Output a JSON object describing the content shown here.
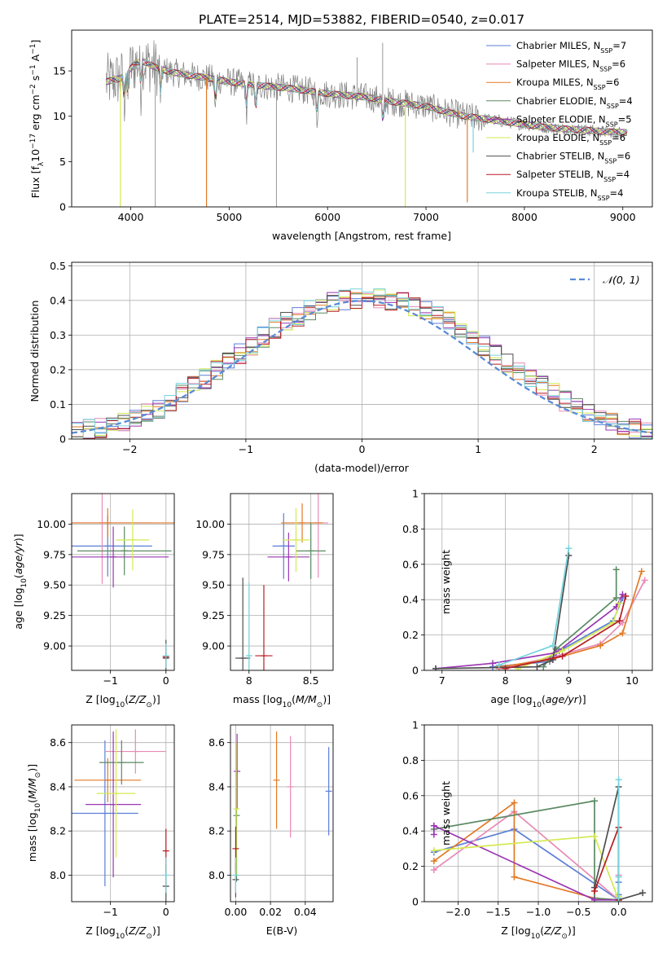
{
  "figure": {
    "title": "PLATE=2514, MJD=53882, FIBERID=0540, z=0.017"
  },
  "models": [
    {
      "name": "Chabrier MILES",
      "nssp": 7,
      "color": "#5b7fd6",
      "label_pre": "Chabrier MILES, N",
      "label_post": "=7"
    },
    {
      "name": "Salpeter MILES",
      "nssp": 6,
      "color": "#e88ab6",
      "label_pre": "Salpeter MILES, N",
      "label_post": "=6"
    },
    {
      "name": "Kroupa MILES",
      "nssp": 6,
      "color": "#e27a26",
      "label_pre": "Kroupa MILES, N",
      "label_post": "=6"
    },
    {
      "name": "Chabrier ELODIE",
      "nssp": 4,
      "color": "#5a8a62",
      "label_pre": "Chabrier ELODIE, N",
      "label_post": "=4"
    },
    {
      "name": "Salpeter ELODIE",
      "nssp": 5,
      "color": "#9a36b4",
      "label_pre": "Salpeter ELODIE, N",
      "label_post": "=5"
    },
    {
      "name": "Kroupa ELODIE",
      "nssp": 6,
      "color": "#d4ea52",
      "label_pre": "Kroupa ELODIE, N",
      "label_post": "=6"
    },
    {
      "name": "Chabrier STELIB",
      "nssp": 6,
      "color": "#4f4f4f",
      "label_pre": "Chabrier STELIB, N",
      "label_post": "=6"
    },
    {
      "name": "Salpeter STELIB",
      "nssp": 4,
      "color": "#b81c22",
      "label_pre": "Salpeter STELIB, N",
      "label_post": "=4"
    },
    {
      "name": "Kroupa STELIB",
      "nssp": 4,
      "color": "#76d4de",
      "label_pre": "Kroupa STELIB, N",
      "label_post": "=4"
    }
  ],
  "chart_data": [
    {
      "id": "spectrum",
      "type": "line",
      "xlabel": "wavelength [Angstrom, rest frame]",
      "ylabel": "Flux [f",
      "xlim": [
        3400,
        9300
      ],
      "ylim": [
        0,
        19.5
      ],
      "xticks": [
        4000,
        5000,
        6000,
        7000,
        8000,
        9000
      ],
      "yticks": [
        0,
        5,
        10,
        15
      ],
      "grid": false,
      "legend": "top-right",
      "data_color": "#808080",
      "data_x_range": [
        3750,
        9050
      ],
      "continuum": [
        [
          3750,
          13.8
        ],
        [
          3900,
          14.2
        ],
        [
          4000,
          15.3
        ],
        [
          4100,
          16.2
        ],
        [
          4250,
          15.4
        ],
        [
          4400,
          14.9
        ],
        [
          4600,
          14.5
        ],
        [
          4800,
          14.2
        ],
        [
          5000,
          13.8
        ],
        [
          5200,
          13.5
        ],
        [
          5400,
          13.3
        ],
        [
          5600,
          13.1
        ],
        [
          5800,
          12.8
        ],
        [
          6000,
          12.5
        ],
        [
          6200,
          12.3
        ],
        [
          6400,
          12.1
        ],
        [
          6600,
          11.7
        ],
        [
          6800,
          11.4
        ],
        [
          7000,
          11.1
        ],
        [
          7200,
          10.5
        ],
        [
          7400,
          10.0
        ],
        [
          7600,
          9.7
        ],
        [
          7800,
          9.4
        ],
        [
          8000,
          9.1
        ],
        [
          8200,
          8.8
        ],
        [
          8400,
          8.6
        ],
        [
          8600,
          8.5
        ],
        [
          8800,
          8.3
        ],
        [
          9050,
          8.2
        ]
      ],
      "absorption_lines": [
        3934,
        3969,
        4102,
        4304,
        4861,
        5175,
        5270,
        5892,
        6563
      ],
      "data_spikes": [
        [
          4250,
          0
        ],
        [
          5480,
          0
        ],
        [
          6560,
          18.1
        ],
        [
          6300,
          16.5
        ]
      ],
      "model_dropouts": [
        [
          3895,
          0,
          "Kroupa ELODIE"
        ],
        [
          4770,
          0,
          "Kroupa MILES"
        ],
        [
          6790,
          0,
          "Kroupa ELODIE"
        ],
        [
          7420,
          0.5,
          "Kroupa MILES"
        ],
        [
          7330,
          10.5,
          "Kroupa MILES"
        ],
        [
          7480,
          6.0,
          "Kroupa STELIB"
        ]
      ]
    },
    {
      "id": "residuals",
      "type": "histogram",
      "xlabel": "(data-model)/error",
      "ylabel": "Normed distribution",
      "xlim": [
        -2.5,
        2.5
      ],
      "ylim": [
        0,
        0.51
      ],
      "xticks": [
        -2,
        -1,
        0,
        1,
        2
      ],
      "yticks": [
        0.0,
        0.1,
        0.2,
        0.3,
        0.4,
        0.5
      ],
      "grid": true,
      "legend": "top-right",
      "legend_label": "𝒩(0, 1)",
      "bin_edges": [
        -2.5,
        -2.4,
        -2.3,
        -2.2,
        -2.1,
        -2.0,
        -1.9,
        -1.8,
        -1.7,
        -1.6,
        -1.5,
        -1.4,
        -1.3,
        -1.2,
        -1.1,
        -1.0,
        -0.9,
        -0.8,
        -0.7,
        -0.6,
        -0.5,
        -0.4,
        -0.3,
        -0.2,
        -0.1,
        0.0,
        0.1,
        0.2,
        0.3,
        0.4,
        0.5,
        0.6,
        0.7,
        0.8,
        0.9,
        1.0,
        1.1,
        1.2,
        1.3,
        1.4,
        1.5,
        1.6,
        1.7,
        1.8,
        1.9,
        2.0,
        2.1,
        2.2,
        2.3,
        2.4,
        2.5
      ],
      "base_heights": [
        0.025,
        0.028,
        0.032,
        0.036,
        0.05,
        0.06,
        0.075,
        0.09,
        0.11,
        0.135,
        0.155,
        0.175,
        0.2,
        0.22,
        0.245,
        0.27,
        0.295,
        0.32,
        0.34,
        0.355,
        0.37,
        0.385,
        0.395,
        0.4,
        0.405,
        0.41,
        0.405,
        0.4,
        0.395,
        0.385,
        0.37,
        0.355,
        0.34,
        0.32,
        0.295,
        0.27,
        0.245,
        0.22,
        0.2,
        0.175,
        0.155,
        0.135,
        0.11,
        0.09,
        0.075,
        0.06,
        0.05,
        0.036,
        0.03,
        0.025
      ]
    },
    {
      "id": "age_vs_Z",
      "type": "scatter",
      "xlabel_pre": "Z [log",
      "ylabel_pre": "age  [log",
      "xlim": [
        -1.7,
        0.15
      ],
      "ylim": [
        8.8,
        10.25
      ],
      "xticks": [
        -1,
        0
      ],
      "yticks": [
        9.0,
        9.25,
        9.5,
        9.75,
        10.0
      ],
      "ytick_labels": [
        "9.00",
        "9.25",
        "9.50",
        "9.75",
        "10.00"
      ],
      "grid": true,
      "points": [
        {
          "model": "Chabrier MILES",
          "x": -1.05,
          "y": 9.82,
          "xerr": 0.8,
          "yerr": 0.25
        },
        {
          "model": "Salpeter MILES",
          "x": -1.15,
          "y": 10.01,
          "xerr": 0.9,
          "yerr": 0.5
        },
        {
          "model": "Kroupa MILES",
          "x": -1.05,
          "y": 10.01,
          "xerr": 1.2,
          "yerr": 0.12
        },
        {
          "model": "Chabrier ELODIE",
          "x": -0.75,
          "y": 9.78,
          "xerr": 0.85,
          "yerr": 0.2
        },
        {
          "model": "Salpeter ELODIE",
          "x": -0.95,
          "y": 9.73,
          "xerr": 1.0,
          "yerr": 0.25
        },
        {
          "model": "Kroupa ELODIE",
          "x": -0.6,
          "y": 9.87,
          "xerr": 0.3,
          "yerr": 0.25
        },
        {
          "model": "Chabrier STELIB",
          "x": 0.0,
          "y": 8.9,
          "xerr": 0.03,
          "yerr": 0.15
        },
        {
          "model": "Salpeter STELIB",
          "x": 0.0,
          "y": 8.91,
          "xerr": 0.03,
          "yerr": 0.02
        },
        {
          "model": "Kroupa STELIB",
          "x": 0.0,
          "y": 8.92,
          "xerr": 0.05,
          "yerr": 0.1
        }
      ]
    },
    {
      "id": "age_vs_mass",
      "type": "scatter",
      "xlabel_pre": "mass [log",
      "ylabel_pre": "",
      "xlim": [
        7.85,
        8.68
      ],
      "ylim": [
        8.8,
        10.25
      ],
      "xticks": [
        8.0,
        8.5
      ],
      "yticks": [
        9.0,
        9.25,
        9.5,
        9.75,
        10.0
      ],
      "ytick_labels": [
        "9.00",
        "9.25",
        "9.50",
        "9.75",
        "10.00"
      ],
      "grid": true,
      "points": [
        {
          "model": "Chabrier MILES",
          "x": 8.28,
          "y": 9.82,
          "xerr": 0.09,
          "yerr": 0.27
        },
        {
          "model": "Salpeter MILES",
          "x": 8.56,
          "y": 10.01,
          "xerr": 0.08,
          "yerr": 0.45
        },
        {
          "model": "Kroupa MILES",
          "x": 8.43,
          "y": 10.01,
          "xerr": 0.17,
          "yerr": 0.16
        },
        {
          "model": "Chabrier ELODIE",
          "x": 8.5,
          "y": 9.78,
          "xerr": 0.12,
          "yerr": 0.23
        },
        {
          "model": "Salpeter ELODIE",
          "x": 8.32,
          "y": 9.73,
          "xerr": 0.17,
          "yerr": 0.2
        },
        {
          "model": "Kroupa ELODIE",
          "x": 8.38,
          "y": 9.87,
          "xerr": 0.11,
          "yerr": 0.26
        },
        {
          "model": "Chabrier STELIB",
          "x": 7.95,
          "y": 8.9,
          "xerr": 0.06,
          "yerr": 0.66
        },
        {
          "model": "Salpeter STELIB",
          "x": 8.12,
          "y": 8.92,
          "xerr": 0.07,
          "yerr": 0.58
        },
        {
          "model": "Kroupa STELIB",
          "x": 8.0,
          "y": 8.92,
          "xerr": 0.02,
          "yerr": 0.6
        }
      ]
    },
    {
      "id": "weight_vs_age",
      "type": "line",
      "xlabel_pre": "age  [log",
      "ylabel": "mass weight",
      "xlim": [
        6.72,
        10.32
      ],
      "ylim": [
        0,
        1.0
      ],
      "xticks": [
        7,
        8,
        9,
        10
      ],
      "yticks": [
        0.0,
        0.2,
        0.4,
        0.6,
        0.8,
        1.0
      ],
      "grid": true,
      "series": [
        {
          "model": "Chabrier MILES",
          "x": [
            7.8,
            8.7,
            8.85,
            9.7,
            9.85
          ],
          "y": [
            0.02,
            0.05,
            0.11,
            0.28,
            0.41
          ]
        },
        {
          "model": "Salpeter MILES",
          "x": [
            7.9,
            8.8,
            9.5,
            9.85,
            10.2
          ],
          "y": [
            0.01,
            0.08,
            0.15,
            0.27,
            0.51
          ]
        },
        {
          "model": "Kroupa MILES",
          "x": [
            7.9,
            8.7,
            9.5,
            9.85,
            10.15
          ],
          "y": [
            0.02,
            0.06,
            0.14,
            0.21,
            0.56
          ]
        },
        {
          "model": "Chabrier ELODIE",
          "x": [
            8.6,
            8.8,
            9.75,
            9.75
          ],
          "y": [
            0.02,
            0.12,
            0.41,
            0.57
          ]
        },
        {
          "model": "Salpeter ELODIE",
          "x": [
            6.9,
            7.8,
            8.8,
            9.75,
            9.85
          ],
          "y": [
            0.01,
            0.04,
            0.1,
            0.36,
            0.43
          ]
        },
        {
          "model": "Kroupa ELODIE",
          "x": [
            8.2,
            8.9,
            9.7,
            9.8
          ],
          "y": [
            0.01,
            0.11,
            0.27,
            0.38
          ]
        },
        {
          "model": "Chabrier STELIB",
          "x": [
            6.9,
            8.5,
            8.75,
            9.0
          ],
          "y": [
            0.01,
            0.02,
            0.06,
            0.65
          ]
        },
        {
          "model": "Salpeter STELIB",
          "x": [
            8.0,
            8.9,
            9.8,
            9.9
          ],
          "y": [
            0.01,
            0.08,
            0.28,
            0.42
          ]
        },
        {
          "model": "Kroupa STELIB",
          "x": [
            7.9,
            8.75,
            9.0
          ],
          "y": [
            0.03,
            0.14,
            0.69
          ]
        }
      ]
    },
    {
      "id": "mass_vs_Z",
      "type": "scatter",
      "xlabel_pre": "Z [log",
      "ylabel_pre": "mass [log",
      "xlim": [
        -1.7,
        0.15
      ],
      "ylim": [
        7.88,
        8.68
      ],
      "xticks": [
        -1,
        0
      ],
      "yticks": [
        8.0,
        8.2,
        8.4,
        8.6
      ],
      "ytick_labels": [
        "8.0",
        "8.2",
        "8.4",
        "8.6"
      ],
      "grid": true,
      "points": [
        {
          "model": "Chabrier MILES",
          "x": -1.1,
          "y": 8.28,
          "xerr": 0.6,
          "yerr": 0.33
        },
        {
          "model": "Salpeter MILES",
          "x": -0.55,
          "y": 8.56,
          "xerr": 0.55,
          "yerr": 0.1
        },
        {
          "model": "Kroupa MILES",
          "x": -1.05,
          "y": 8.43,
          "xerr": 0.6,
          "yerr": 0.1
        },
        {
          "model": "Chabrier ELODIE",
          "x": -0.8,
          "y": 8.51,
          "xerr": 0.4,
          "yerr": 0.1
        },
        {
          "model": "Salpeter ELODIE",
          "x": -0.95,
          "y": 8.32,
          "xerr": 0.5,
          "yerr": 0.33
        },
        {
          "model": "Kroupa ELODIE",
          "x": -0.9,
          "y": 8.37,
          "xerr": 0.35,
          "yerr": 0.29
        },
        {
          "model": "Chabrier STELIB",
          "x": 0.0,
          "y": 7.95,
          "xerr": 0.05,
          "yerr": 0.1
        },
        {
          "model": "Salpeter STELIB",
          "x": 0.0,
          "y": 8.11,
          "xerr": 0.02,
          "yerr": 0.1
        },
        {
          "model": "Kroupa STELIB",
          "x": 0.0,
          "y": 8.0,
          "xerr": 0.01,
          "yerr": 0.08
        }
      ]
    },
    {
      "id": "mass_vs_ebv",
      "type": "scatter",
      "xlabel": "E(B-V)",
      "ylabel_pre": "",
      "xlim": [
        -0.003,
        0.056
      ],
      "ylim": [
        7.88,
        8.68
      ],
      "xticks": [
        0.0,
        0.02,
        0.04
      ],
      "xtick_labels": [
        "0.00",
        "0.02",
        "0.04"
      ],
      "yticks": [
        8.0,
        8.2,
        8.4,
        8.6
      ],
      "ytick_labels": [
        "8.0",
        "8.2",
        "8.4",
        "8.6"
      ],
      "grid": true,
      "points": [
        {
          "model": "Chabrier MILES",
          "x": 0.0535,
          "y": 8.38,
          "xerr": 0,
          "yerr": 0.2
        },
        {
          "model": "Salpeter MILES",
          "x": 0.0315,
          "y": 8.4,
          "xerr": 0,
          "yerr": 0.23
        },
        {
          "model": "Kroupa MILES",
          "x": 0.0235,
          "y": 8.43,
          "xerr": 0,
          "yerr": 0.22
        },
        {
          "model": "Chabrier ELODIE",
          "x": 0.0005,
          "y": 8.27,
          "xerr": 0,
          "yerr": 0.3
        },
        {
          "model": "Salpeter ELODIE",
          "x": 0.0008,
          "y": 8.47,
          "xerr": 0,
          "yerr": 0.17
        },
        {
          "model": "Kroupa ELODIE",
          "x": 0.0003,
          "y": 8.3,
          "xerr": 0,
          "yerr": 0.3
        },
        {
          "model": "Chabrier STELIB",
          "x": 0.0,
          "y": 7.98,
          "xerr": 0,
          "yerr": 0.08
        },
        {
          "model": "Salpeter STELIB",
          "x": 0.0,
          "y": 8.12,
          "xerr": 0,
          "yerr": 0.1
        },
        {
          "model": "Kroupa STELIB",
          "x": 0.0,
          "y": 8.0,
          "xerr": 0,
          "yerr": 0.08
        }
      ]
    },
    {
      "id": "weight_vs_Z",
      "type": "line",
      "xlabel_pre": "Z [log",
      "ylabel": "mass weight",
      "xlim": [
        -2.42,
        0.42
      ],
      "ylim": [
        0,
        1.0
      ],
      "xticks": [
        -2.0,
        -1.5,
        -1.0,
        -0.5,
        0.0
      ],
      "xtick_labels": [
        "−2.0",
        "−1.5",
        "−1.0",
        "−0.5",
        "0.0"
      ],
      "yticks": [
        0.0,
        0.2,
        0.4,
        0.6,
        0.8,
        1.0
      ],
      "grid": true,
      "series": [
        {
          "model": "Chabrier MILES",
          "x": [
            -2.3,
            -1.3,
            0.0,
            0.0,
            0.0
          ],
          "y": [
            0.28,
            0.41,
            0.01,
            0.04,
            0.11
          ]
        },
        {
          "model": "Salpeter MILES",
          "x": [
            -2.3,
            -1.3,
            0.0,
            0.0,
            0.0
          ],
          "y": [
            0.18,
            0.51,
            0.01,
            0.03,
            0.15
          ]
        },
        {
          "model": "Kroupa MILES",
          "x": [
            -2.3,
            -1.3,
            -1.3,
            -0.3,
            0.0
          ],
          "y": [
            0.23,
            0.56,
            0.14,
            0.02,
            0.01
          ]
        },
        {
          "model": "Chabrier ELODIE",
          "x": [
            -2.3,
            -0.3,
            -0.3,
            0.0
          ],
          "y": [
            0.41,
            0.57,
            0.02,
            0.01
          ]
        },
        {
          "model": "Salpeter ELODIE",
          "x": [
            -2.3,
            -2.3,
            -0.3,
            0.0
          ],
          "y": [
            0.38,
            0.43,
            0.01,
            0.01
          ]
        },
        {
          "model": "Kroupa ELODIE",
          "x": [
            -2.3,
            -0.3,
            0.0,
            0.0
          ],
          "y": [
            0.29,
            0.37,
            0.01,
            0.03
          ]
        },
        {
          "model": "Chabrier STELIB",
          "x": [
            -0.3,
            0.0,
            0.0,
            0.3
          ],
          "y": [
            0.08,
            0.65,
            0.01,
            0.05
          ]
        },
        {
          "model": "Salpeter STELIB",
          "x": [
            -0.3,
            0.0,
            0.0
          ],
          "y": [
            0.06,
            0.42,
            0.01
          ]
        },
        {
          "model": "Kroupa STELIB",
          "x": [
            0.0,
            0.0,
            0.0
          ],
          "y": [
            0.69,
            0.14,
            0.02
          ]
        }
      ]
    }
  ]
}
